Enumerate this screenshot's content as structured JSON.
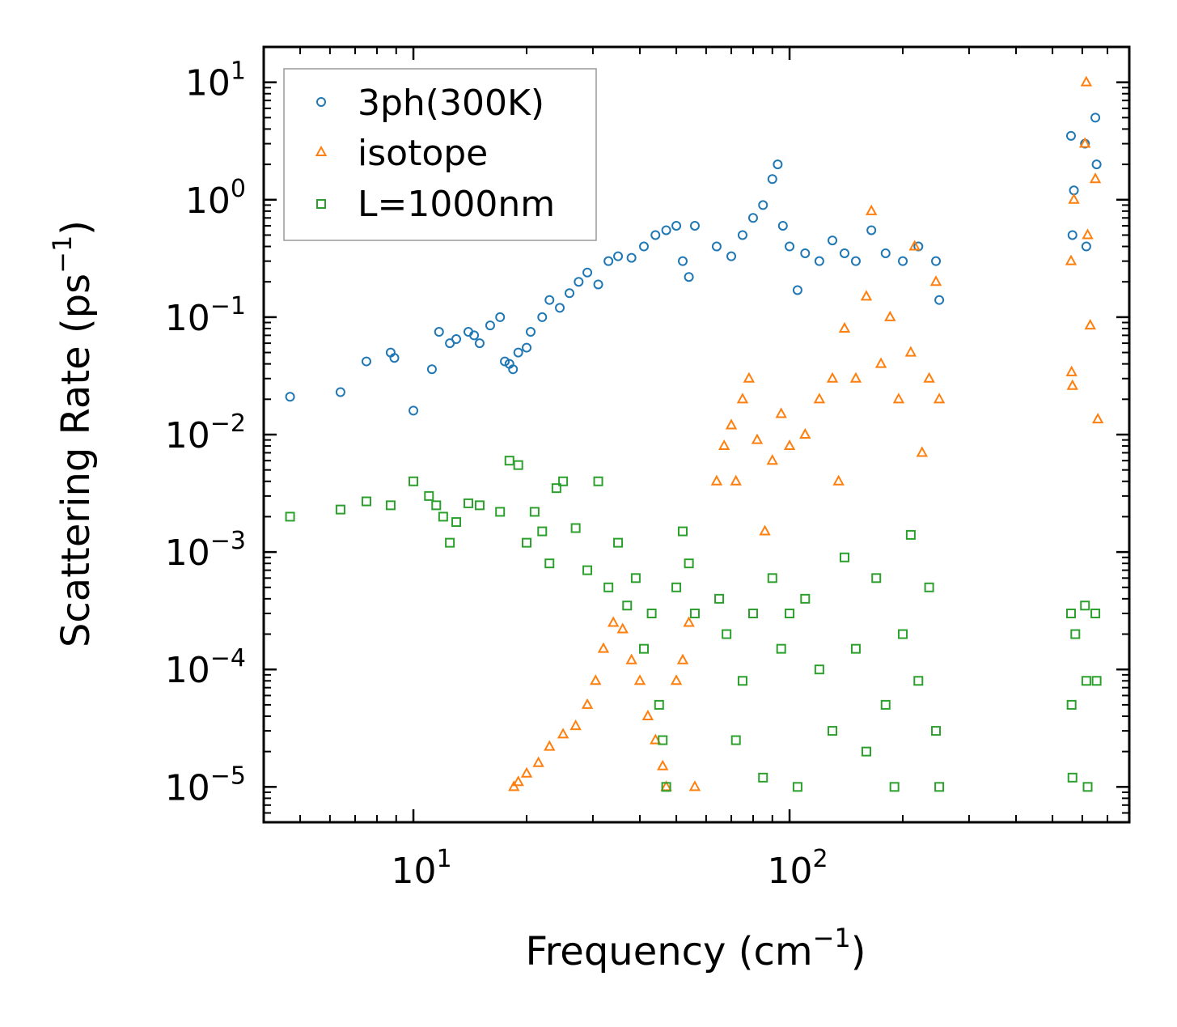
{
  "chart_data": {
    "type": "scatter",
    "xscale": "log",
    "yscale": "log",
    "xlim": [
      4,
      800
    ],
    "ylim": [
      5e-06,
      20
    ],
    "xlabel": "Frequency (cm",
    "xlabel_sup": "−1",
    "xlabel_end": ")",
    "ylabel": "Scattering Rate (ps",
    "ylabel_sup": "−1",
    "ylabel_end": ")",
    "x_ticks": [
      {
        "value": 10,
        "base": "10",
        "exp": "1"
      },
      {
        "value": 100,
        "base": "10",
        "exp": "2"
      }
    ],
    "y_ticks": [
      {
        "value": 10,
        "base": "10",
        "exp": "1"
      },
      {
        "value": 1,
        "base": "10",
        "exp": "0"
      },
      {
        "value": 0.1,
        "base": "10",
        "exp": "−1"
      },
      {
        "value": 0.01,
        "base": "10",
        "exp": "−2"
      },
      {
        "value": 0.001,
        "base": "10",
        "exp": "−3"
      },
      {
        "value": 0.0001,
        "base": "10",
        "exp": "−4"
      },
      {
        "value": 1e-05,
        "base": "10",
        "exp": "−5"
      }
    ],
    "legend_position": "top-left",
    "series": [
      {
        "name": "3ph(300K)",
        "marker": "circle",
        "color": "#1f77b4",
        "points": [
          [
            4.7,
            0.021
          ],
          [
            6.4,
            0.023
          ],
          [
            7.5,
            0.042
          ],
          [
            8.7,
            0.05
          ],
          [
            8.9,
            0.045
          ],
          [
            10.0,
            0.016
          ],
          [
            11.2,
            0.036
          ],
          [
            11.7,
            0.075
          ],
          [
            12.5,
            0.06
          ],
          [
            13.0,
            0.065
          ],
          [
            14.0,
            0.075
          ],
          [
            14.5,
            0.07
          ],
          [
            15.0,
            0.06
          ],
          [
            16.0,
            0.085
          ],
          [
            17.0,
            0.1
          ],
          [
            17.5,
            0.042
          ],
          [
            18.0,
            0.04
          ],
          [
            18.4,
            0.036
          ],
          [
            19.0,
            0.05
          ],
          [
            20.0,
            0.055
          ],
          [
            20.5,
            0.075
          ],
          [
            22.0,
            0.1
          ],
          [
            23.0,
            0.14
          ],
          [
            24.5,
            0.12
          ],
          [
            26.0,
            0.16
          ],
          [
            27.5,
            0.2
          ],
          [
            29.0,
            0.24
          ],
          [
            31.0,
            0.19
          ],
          [
            33.0,
            0.3
          ],
          [
            35.0,
            0.33
          ],
          [
            38.0,
            0.32
          ],
          [
            41.0,
            0.4
          ],
          [
            44.0,
            0.5
          ],
          [
            47.0,
            0.55
          ],
          [
            50.0,
            0.6
          ],
          [
            52.0,
            0.3
          ],
          [
            54.0,
            0.22
          ],
          [
            56.0,
            0.6
          ],
          [
            64.0,
            0.4
          ],
          [
            70.0,
            0.33
          ],
          [
            75.0,
            0.5
          ],
          [
            80.0,
            0.7
          ],
          [
            85.0,
            0.9
          ],
          [
            90.0,
            1.5
          ],
          [
            93.0,
            2.0
          ],
          [
            96.0,
            0.6
          ],
          [
            100.0,
            0.4
          ],
          [
            105.0,
            0.17
          ],
          [
            110.0,
            0.35
          ],
          [
            120.0,
            0.3
          ],
          [
            130.0,
            0.45
          ],
          [
            140.0,
            0.35
          ],
          [
            150.0,
            0.3
          ],
          [
            165.0,
            0.55
          ],
          [
            180.0,
            0.35
          ],
          [
            200.0,
            0.3
          ],
          [
            220.0,
            0.4
          ],
          [
            245.0,
            0.3
          ],
          [
            250.0,
            0.14
          ],
          [
            560.0,
            3.5
          ],
          [
            565.0,
            0.5
          ],
          [
            570.0,
            1.2
          ],
          [
            610.0,
            3.0
          ],
          [
            615.0,
            0.4
          ],
          [
            650.0,
            5.0
          ],
          [
            655.0,
            2.0
          ]
        ]
      },
      {
        "name": "isotope",
        "marker": "triangle",
        "color": "#ff7f0e",
        "points": [
          [
            18.5,
            1e-05
          ],
          [
            19.0,
            1.1e-05
          ],
          [
            20.0,
            1.3e-05
          ],
          [
            21.5,
            1.6e-05
          ],
          [
            23.0,
            2.2e-05
          ],
          [
            25.0,
            2.8e-05
          ],
          [
            27.0,
            3.3e-05
          ],
          [
            29.0,
            5e-05
          ],
          [
            30.5,
            8e-05
          ],
          [
            32.0,
            0.00015
          ],
          [
            34.0,
            0.00025
          ],
          [
            36.0,
            0.00022
          ],
          [
            38.0,
            0.00012
          ],
          [
            40.0,
            8e-05
          ],
          [
            42.0,
            4e-05
          ],
          [
            44.0,
            2.5e-05
          ],
          [
            46.0,
            1.5e-05
          ],
          [
            47.0,
            1e-05
          ],
          [
            50.0,
            8e-05
          ],
          [
            52.0,
            0.00012
          ],
          [
            54.0,
            0.00025
          ],
          [
            56.0,
            1e-05
          ],
          [
            64.0,
            0.004
          ],
          [
            67.0,
            0.008
          ],
          [
            70.0,
            0.012
          ],
          [
            72.0,
            0.004
          ],
          [
            75.0,
            0.02
          ],
          [
            78.0,
            0.03
          ],
          [
            82.0,
            0.009
          ],
          [
            86.0,
            0.0015
          ],
          [
            90.0,
            0.006
          ],
          [
            95.0,
            0.015
          ],
          [
            100.0,
            0.008
          ],
          [
            110.0,
            0.01
          ],
          [
            120.0,
            0.02
          ],
          [
            130.0,
            0.03
          ],
          [
            135.0,
            0.004
          ],
          [
            140.0,
            0.08
          ],
          [
            150.0,
            0.03
          ],
          [
            160.0,
            0.15
          ],
          [
            165.0,
            0.8
          ],
          [
            175.0,
            0.04
          ],
          [
            185.0,
            0.1
          ],
          [
            195.0,
            0.02
          ],
          [
            210.0,
            0.05
          ],
          [
            215.0,
            0.4
          ],
          [
            225.0,
            0.007
          ],
          [
            235.0,
            0.03
          ],
          [
            245.0,
            0.2
          ],
          [
            250.0,
            0.02
          ],
          [
            560.0,
            0.3
          ],
          [
            562.0,
            0.034
          ],
          [
            565.0,
            0.026
          ],
          [
            570.0,
            1.0
          ],
          [
            610.0,
            3.0
          ],
          [
            615.0,
            10.0
          ],
          [
            620.0,
            0.5
          ],
          [
            630.0,
            0.085
          ],
          [
            650.0,
            1.5
          ],
          [
            660.0,
            0.0135
          ]
        ]
      },
      {
        "name": "L=1000nm",
        "marker": "square",
        "color": "#2ca02c",
        "points": [
          [
            4.7,
            0.002
          ],
          [
            6.4,
            0.0023
          ],
          [
            7.5,
            0.0027
          ],
          [
            8.7,
            0.0025
          ],
          [
            10.0,
            0.004
          ],
          [
            11.0,
            0.003
          ],
          [
            11.5,
            0.0025
          ],
          [
            12.0,
            0.002
          ],
          [
            12.5,
            0.0012
          ],
          [
            13.0,
            0.0018
          ],
          [
            14.0,
            0.0026
          ],
          [
            15.0,
            0.0025
          ],
          [
            17.0,
            0.0022
          ],
          [
            18.0,
            0.006
          ],
          [
            19.0,
            0.0055
          ],
          [
            20.0,
            0.0012
          ],
          [
            21.0,
            0.0022
          ],
          [
            22.0,
            0.0015
          ],
          [
            23.0,
            0.0008
          ],
          [
            24.0,
            0.0035
          ],
          [
            25.0,
            0.004
          ],
          [
            27.0,
            0.0016
          ],
          [
            29.0,
            0.0007
          ],
          [
            31.0,
            0.004
          ],
          [
            33.0,
            0.0005
          ],
          [
            35.0,
            0.0012
          ],
          [
            37.0,
            0.00035
          ],
          [
            39.0,
            0.0006
          ],
          [
            41.0,
            0.00015
          ],
          [
            43.0,
            0.0003
          ],
          [
            45.0,
            5e-05
          ],
          [
            46.0,
            2.5e-05
          ],
          [
            47.0,
            1e-05
          ],
          [
            50.0,
            0.0005
          ],
          [
            52.0,
            0.0015
          ],
          [
            54.0,
            0.0008
          ],
          [
            56.0,
            0.0003
          ],
          [
            65.0,
            0.0004
          ],
          [
            68.0,
            0.0002
          ],
          [
            72.0,
            2.5e-05
          ],
          [
            75.0,
            8e-05
          ],
          [
            80.0,
            0.0003
          ],
          [
            85.0,
            1.2e-05
          ],
          [
            90.0,
            0.0006
          ],
          [
            95.0,
            0.00015
          ],
          [
            100.0,
            0.0003
          ],
          [
            105.0,
            1e-05
          ],
          [
            110.0,
            0.0004
          ],
          [
            120.0,
            0.0001
          ],
          [
            130.0,
            3e-05
          ],
          [
            140.0,
            0.0009
          ],
          [
            150.0,
            0.00015
          ],
          [
            160.0,
            2e-05
          ],
          [
            170.0,
            0.0006
          ],
          [
            180.0,
            5e-05
          ],
          [
            190.0,
            1e-05
          ],
          [
            200.0,
            0.0002
          ],
          [
            210.0,
            0.0014
          ],
          [
            220.0,
            8e-05
          ],
          [
            235.0,
            0.0005
          ],
          [
            245.0,
            3e-05
          ],
          [
            250.0,
            1e-05
          ],
          [
            560.0,
            0.0003
          ],
          [
            562.0,
            5e-05
          ],
          [
            565.0,
            1.2e-05
          ],
          [
            575.0,
            0.0002
          ],
          [
            610.0,
            0.00035
          ],
          [
            615.0,
            8e-05
          ],
          [
            620.0,
            1e-05
          ],
          [
            650.0,
            0.0003
          ],
          [
            655.0,
            8e-05
          ]
        ]
      }
    ]
  }
}
